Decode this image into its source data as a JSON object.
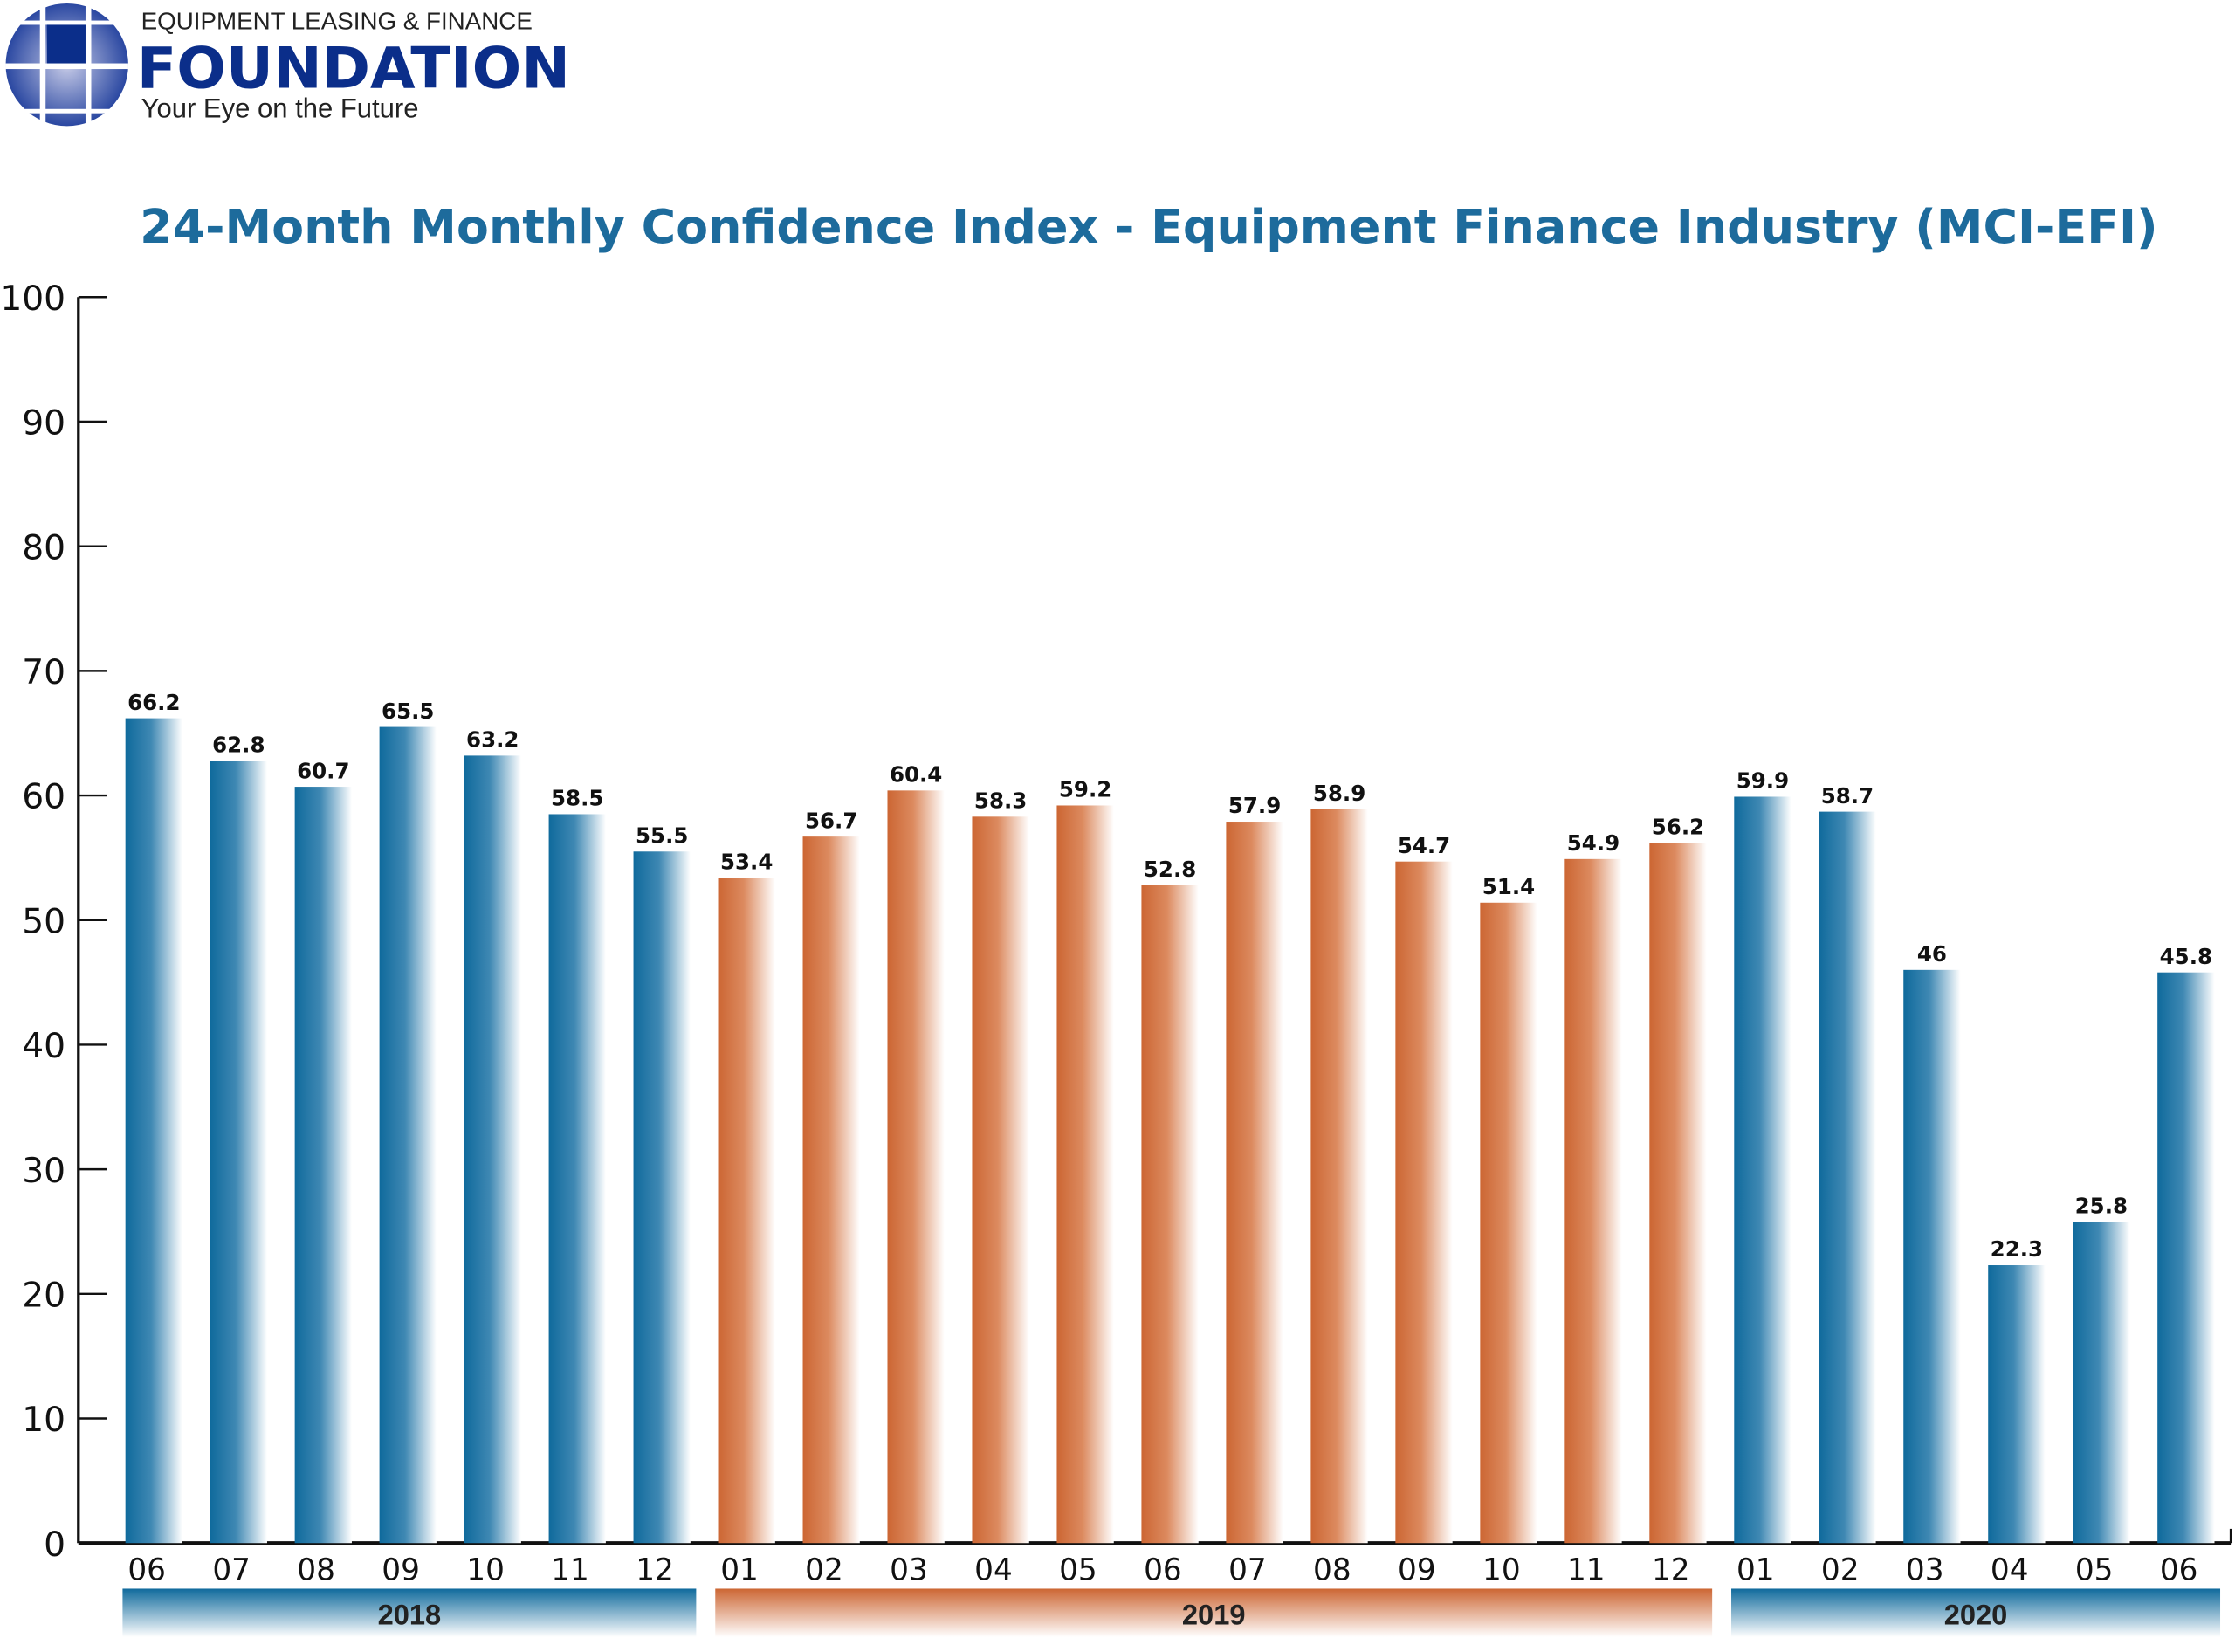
{
  "logo": {
    "line1": "EQUIPMENT LEASING & FINANCE",
    "line2": "FOUNDATION",
    "tagline": "Your Eye on the Future"
  },
  "colors": {
    "y2018": "#0f6a9c",
    "y2019": "#cc6633",
    "y2020": "#0f6a9c",
    "title": "#1d6b9c"
  },
  "chart_data": {
    "type": "bar",
    "title": "24-Month Monthly Confidence Index - Equipment Finance Industry (MCI-EFI)",
    "xlabel": "",
    "ylabel": "",
    "ylim": [
      0,
      100
    ],
    "yticks": [
      "0",
      "10",
      "20",
      "30",
      "40",
      "50",
      "60",
      "70",
      "80",
      "90",
      "100"
    ],
    "grid": false,
    "categories": [
      "06",
      "07",
      "08",
      "09",
      "10",
      "11",
      "12",
      "01",
      "02",
      "03",
      "04",
      "05",
      "06",
      "07",
      "08",
      "09",
      "10",
      "11",
      "12",
      "01",
      "02",
      "03",
      "04",
      "05",
      "06"
    ],
    "years": [
      "2018",
      "2018",
      "2018",
      "2018",
      "2018",
      "2018",
      "2018",
      "2019",
      "2019",
      "2019",
      "2019",
      "2019",
      "2019",
      "2019",
      "2019",
      "2019",
      "2019",
      "2019",
      "2019",
      "2020",
      "2020",
      "2020",
      "2020",
      "2020",
      "2020"
    ],
    "values": [
      66.2,
      62.8,
      60.7,
      65.5,
      63.2,
      58.5,
      55.5,
      53.4,
      56.7,
      60.4,
      58.3,
      59.2,
      52.8,
      57.9,
      58.9,
      54.7,
      51.4,
      54.9,
      56.2,
      59.9,
      58.7,
      46,
      22.3,
      25.8,
      45.8
    ],
    "data_labels": [
      "66.2",
      "62.8",
      "60.7",
      "65.5",
      "63.2",
      "58.5",
      "55.5",
      "53.4",
      "56.7",
      "60.4",
      "58.3",
      "59.2",
      "52.8",
      "57.9",
      "58.9",
      "54.7",
      "51.4",
      "54.9",
      "56.2",
      "59.9",
      "58.7",
      "46",
      "22.3",
      "25.8",
      "45.8"
    ],
    "year_groups": [
      {
        "label": "2018",
        "color": "#0f6a9c"
      },
      {
        "label": "2019",
        "color": "#cc6633"
      },
      {
        "label": "2020",
        "color": "#0f6a9c"
      }
    ]
  }
}
